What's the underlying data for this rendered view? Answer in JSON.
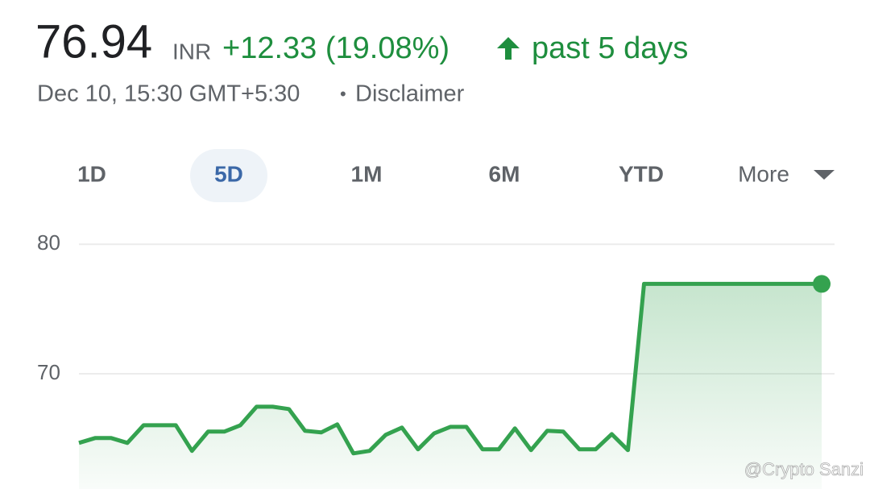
{
  "header": {
    "price": "76.94",
    "currency": "INR",
    "change": "+12.33 (19.08%)",
    "period": "past 5 days",
    "timestamp": "Dec 10, 15:30 GMT+5:30",
    "separator": "•",
    "disclaimer": "Disclaimer"
  },
  "tabs": [
    "1D",
    "5D",
    "1M",
    "6M",
    "YTD",
    "More"
  ],
  "watermark": "@Crypto Sanzi",
  "chart_data": {
    "type": "line",
    "color": "#34a24f",
    "values": [
      64.66,
      65.03,
      65.03,
      64.66,
      66.02,
      66.02,
      66.02,
      64.04,
      65.53,
      65.53,
      66.02,
      67.45,
      67.45,
      67.27,
      65.59,
      65.47,
      66.09,
      63.85,
      64.04,
      65.28,
      65.84,
      64.16,
      65.4,
      65.9,
      65.9,
      64.16,
      64.16,
      65.78,
      64.1,
      65.59,
      65.53,
      64.16,
      64.16,
      65.34,
      64.1,
      76.94,
      76.94,
      76.94,
      76.94,
      76.94,
      76.94,
      76.94,
      76.94,
      76.94,
      76.94,
      76.94,
      76.94
    ],
    "ylim": [
      61.1,
      80.7
    ],
    "yticks": [
      70,
      80
    ],
    "grid": true
  }
}
